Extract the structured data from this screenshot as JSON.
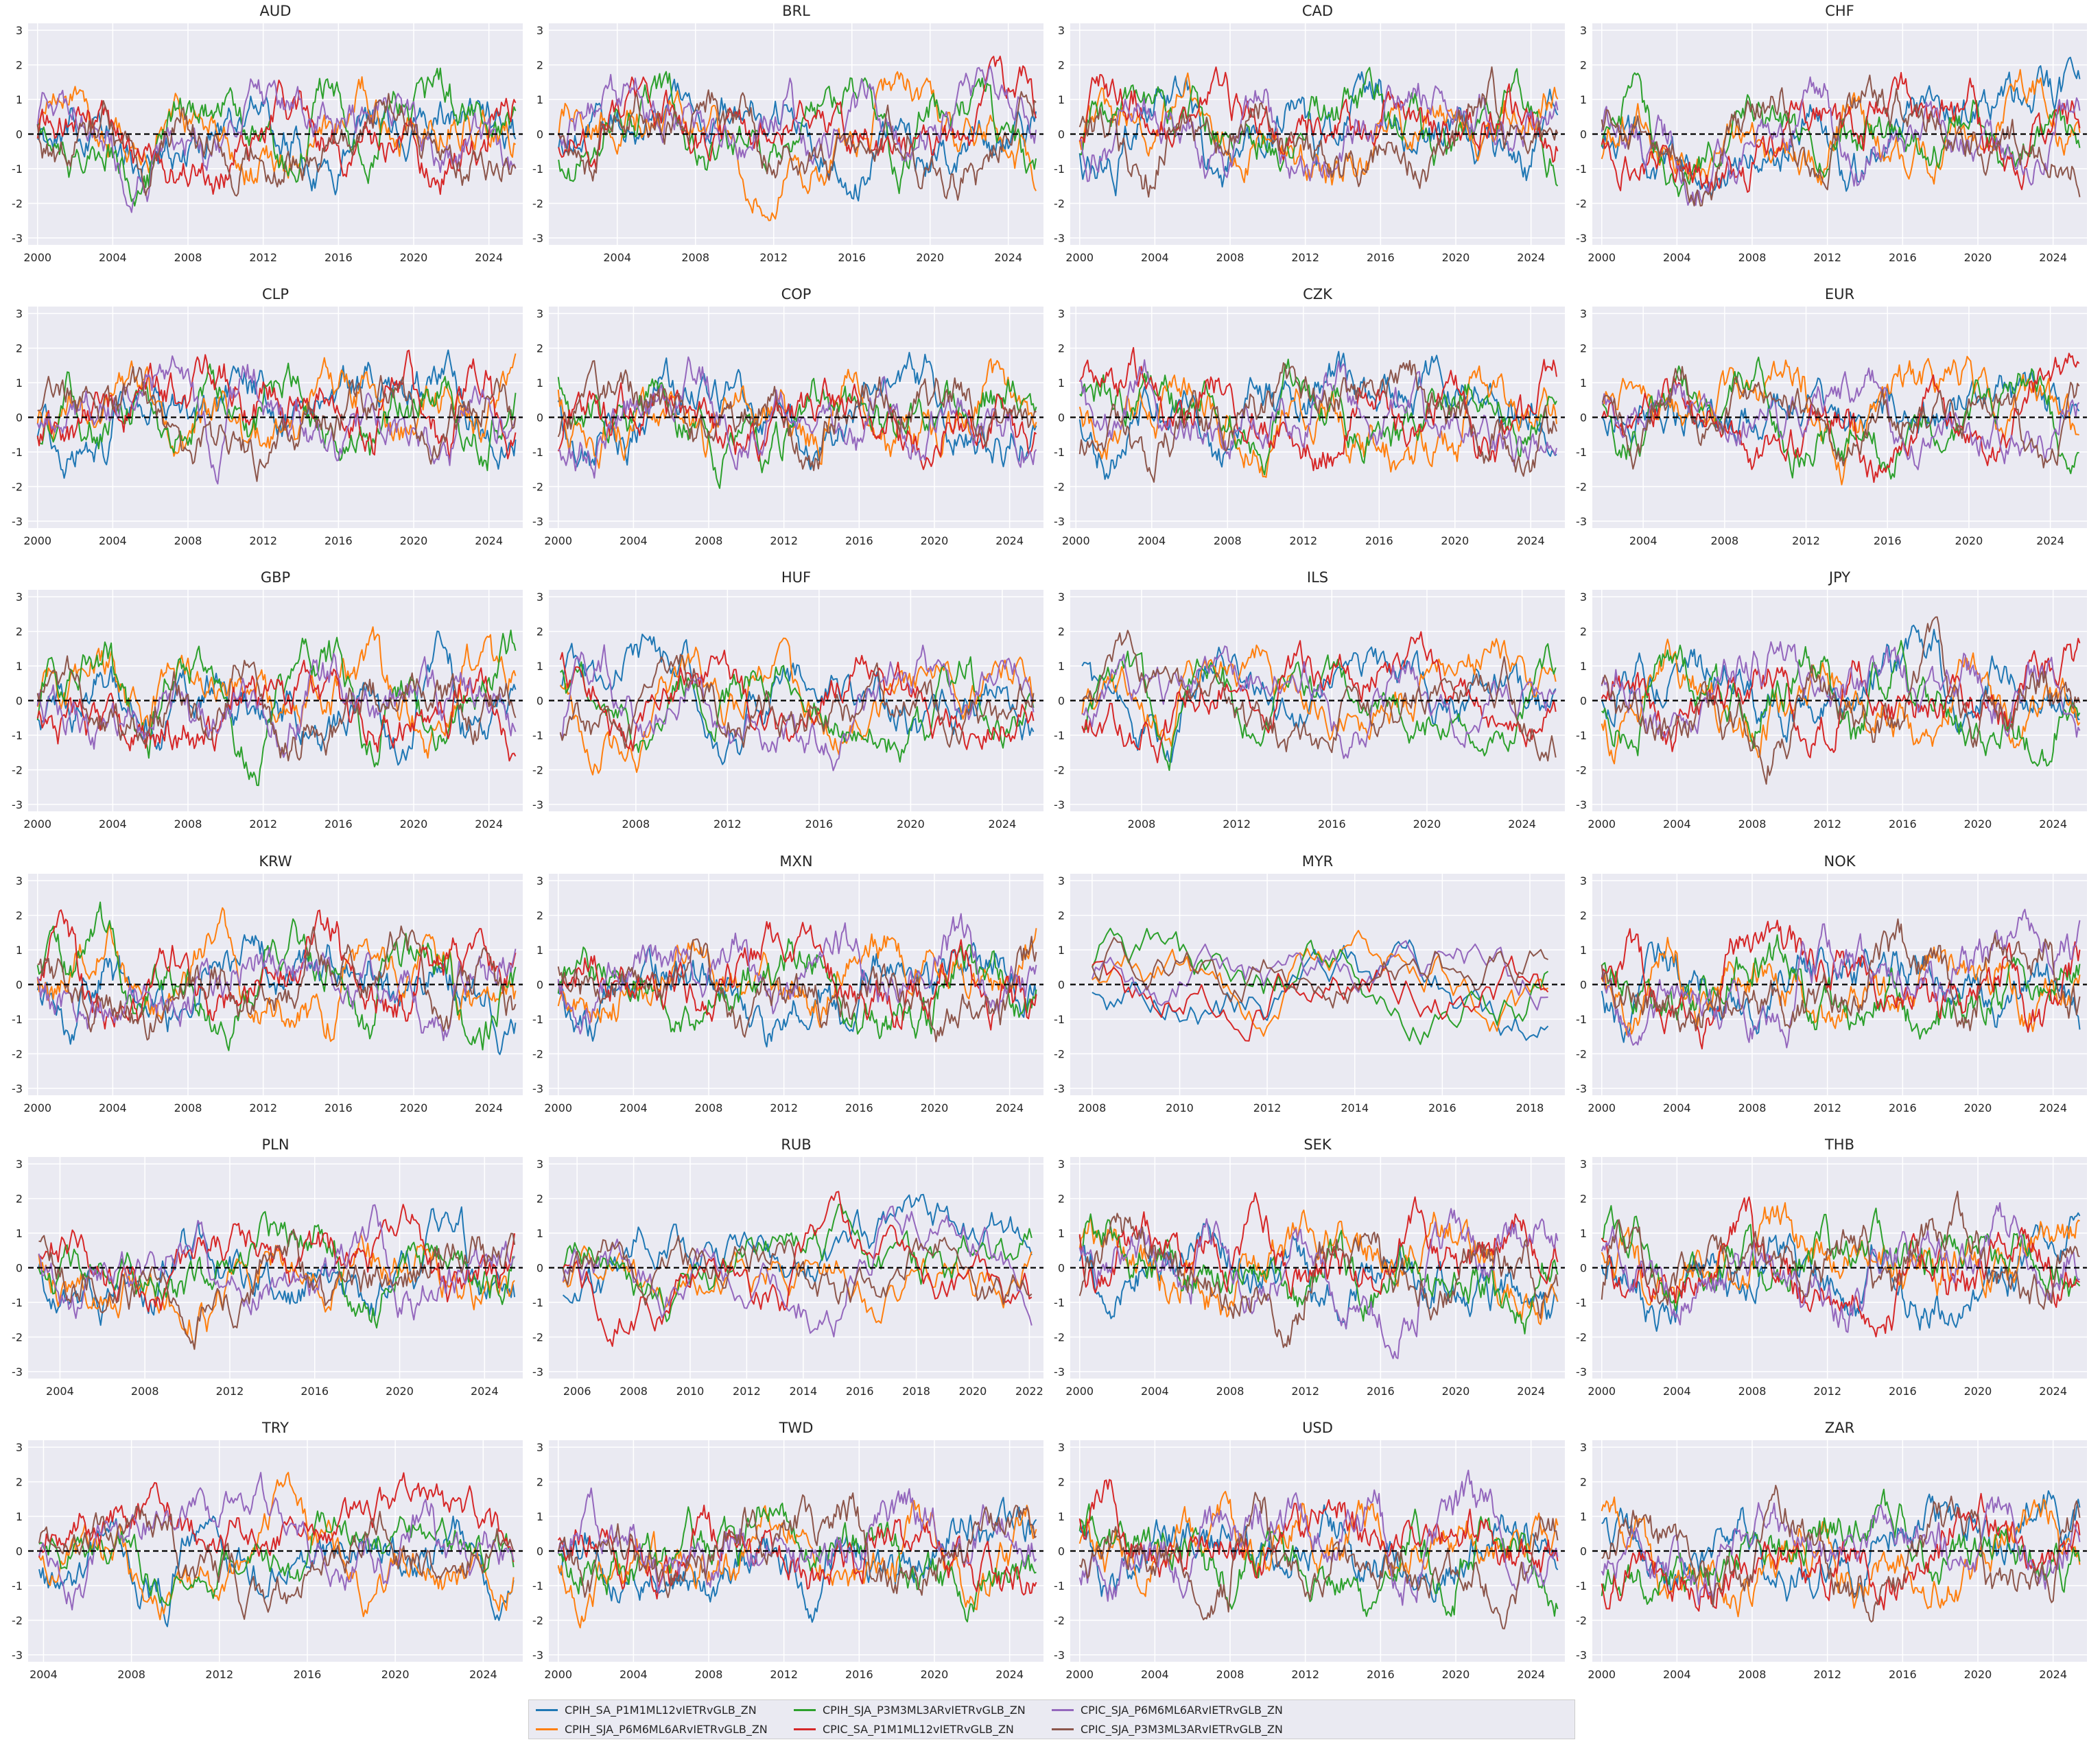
{
  "legend": [
    {
      "label": "CPIH_SA_P1M1ML12vIETRvGLB_ZN",
      "color": "#1f77b4"
    },
    {
      "label": "CPIH_SJA_P6M6ML6ARvIETRvGLB_ZN",
      "color": "#ff7f0e"
    },
    {
      "label": "CPIH_SJA_P3M3ML3ARvIETRvGLB_ZN",
      "color": "#2ca02c"
    },
    {
      "label": "CPIC_SA_P1M1ML12vIETRvGLB_ZN",
      "color": "#d62728"
    },
    {
      "label": "CPIC_SJA_P6M6ML6ARvIETRvGLB_ZN",
      "color": "#9467bd"
    },
    {
      "label": "CPIC_SJA_P3M3ML3ARvIETRvGLB_ZN",
      "color": "#8c564b"
    }
  ],
  "style": {
    "plot_bg": "#eaeaf2",
    "grid": "#ffffff",
    "zero_line": "#000000",
    "text": "#262626"
  },
  "chart_data": [
    {
      "type": "line",
      "title": "AUD",
      "xlim": [
        1999.5,
        2025.8
      ],
      "ylim": [
        -3.2,
        3.2
      ],
      "xticks": [
        "2000",
        "2004",
        "2008",
        "2012",
        "2016",
        "2020",
        "2024"
      ],
      "yticks": [
        "3",
        "2",
        "1",
        "0",
        "-1",
        "-2",
        "-3"
      ],
      "zero_line": 0,
      "grid": true
    },
    {
      "type": "line",
      "title": "BRL",
      "xlim": [
        2000.5,
        2025.8
      ],
      "ylim": [
        -3.2,
        3.2
      ],
      "xticks": [
        "2004",
        "2008",
        "2012",
        "2016",
        "2020",
        "2024"
      ],
      "yticks": [
        "3",
        "2",
        "1",
        "0",
        "-1",
        "-2",
        "-3"
      ],
      "zero_line": 0,
      "grid": true
    },
    {
      "type": "line",
      "title": "CAD",
      "xlim": [
        1999.5,
        2025.8
      ],
      "ylim": [
        -3.2,
        3.2
      ],
      "xticks": [
        "2000",
        "2004",
        "2008",
        "2012",
        "2016",
        "2020",
        "2024"
      ],
      "yticks": [
        "3",
        "2",
        "1",
        "0",
        "-1",
        "-2",
        "-3"
      ],
      "zero_line": 0,
      "grid": true
    },
    {
      "type": "line",
      "title": "CHF",
      "xlim": [
        1999.5,
        2025.8
      ],
      "ylim": [
        -3.2,
        3.2
      ],
      "xticks": [
        "2000",
        "2004",
        "2008",
        "2012",
        "2016",
        "2020",
        "2024"
      ],
      "yticks": [
        "3",
        "2",
        "1",
        "0",
        "-1",
        "-2",
        "-3"
      ],
      "zero_line": 0,
      "grid": true
    },
    {
      "type": "line",
      "title": "CLP",
      "xlim": [
        1999.5,
        2025.8
      ],
      "ylim": [
        -3.2,
        3.2
      ],
      "xticks": [
        "2000",
        "2004",
        "2008",
        "2012",
        "2016",
        "2020",
        "2024"
      ],
      "yticks": [
        "3",
        "2",
        "1",
        "0",
        "-1",
        "-2",
        "-3"
      ],
      "zero_line": 0,
      "grid": true
    },
    {
      "type": "line",
      "title": "COP",
      "xlim": [
        1999.5,
        2025.8
      ],
      "ylim": [
        -3.2,
        3.2
      ],
      "xticks": [
        "2000",
        "2004",
        "2008",
        "2012",
        "2016",
        "2020",
        "2024"
      ],
      "yticks": [
        "3",
        "2",
        "1",
        "0",
        "-1",
        "-2",
        "-3"
      ],
      "zero_line": 0,
      "grid": true
    },
    {
      "type": "line",
      "title": "CZK",
      "xlim": [
        1999.7,
        2025.8
      ],
      "ylim": [
        -3.2,
        3.2
      ],
      "xticks": [
        "2000",
        "2004",
        "2008",
        "2012",
        "2016",
        "2020",
        "2024"
      ],
      "yticks": [
        "3",
        "2",
        "1",
        "0",
        "-1",
        "-2",
        "-3"
      ],
      "zero_line": 0,
      "grid": true
    },
    {
      "type": "line",
      "title": "EUR",
      "xlim": [
        2001.5,
        2025.8
      ],
      "ylim": [
        -3.2,
        3.2
      ],
      "xticks": [
        "2004",
        "2008",
        "2012",
        "2016",
        "2020",
        "2024"
      ],
      "yticks": [
        "3",
        "2",
        "1",
        "0",
        "-1",
        "-2",
        "-3"
      ],
      "zero_line": 0,
      "grid": true
    },
    {
      "type": "line",
      "title": "GBP",
      "xlim": [
        1999.5,
        2025.8
      ],
      "ylim": [
        -3.2,
        3.2
      ],
      "xticks": [
        "2000",
        "2004",
        "2008",
        "2012",
        "2016",
        "2020",
        "2024"
      ],
      "yticks": [
        "3",
        "2",
        "1",
        "0",
        "-1",
        "-2",
        "-3"
      ],
      "zero_line": 0,
      "grid": true
    },
    {
      "type": "line",
      "title": "HUF",
      "xlim": [
        2004.2,
        2025.8
      ],
      "ylim": [
        -3.2,
        3.2
      ],
      "xticks": [
        "2008",
        "2012",
        "2016",
        "2020",
        "2024"
      ],
      "yticks": [
        "3",
        "2",
        "1",
        "0",
        "-1",
        "-2",
        "-3"
      ],
      "zero_line": 0,
      "grid": true
    },
    {
      "type": "line",
      "title": "ILS",
      "xlim": [
        2005.0,
        2025.8
      ],
      "ylim": [
        -3.2,
        3.2
      ],
      "xticks": [
        "2008",
        "2012",
        "2016",
        "2020",
        "2024"
      ],
      "yticks": [
        "3",
        "2",
        "1",
        "0",
        "-1",
        "-2",
        "-3"
      ],
      "zero_line": 0,
      "grid": true
    },
    {
      "type": "line",
      "title": "JPY",
      "xlim": [
        1999.5,
        2025.8
      ],
      "ylim": [
        -3.2,
        3.2
      ],
      "xticks": [
        "2000",
        "2004",
        "2008",
        "2012",
        "2016",
        "2020",
        "2024"
      ],
      "yticks": [
        "3",
        "2",
        "1",
        "0",
        "-1",
        "-2",
        "-3"
      ],
      "zero_line": 0,
      "grid": true
    },
    {
      "type": "line",
      "title": "KRW",
      "xlim": [
        1999.5,
        2025.8
      ],
      "ylim": [
        -3.2,
        3.2
      ],
      "xticks": [
        "2000",
        "2004",
        "2008",
        "2012",
        "2016",
        "2020",
        "2024"
      ],
      "yticks": [
        "3",
        "2",
        "1",
        "0",
        "-1",
        "-2",
        "-3"
      ],
      "zero_line": 0,
      "grid": true
    },
    {
      "type": "line",
      "title": "MXN",
      "xlim": [
        1999.5,
        2025.8
      ],
      "ylim": [
        -3.2,
        3.2
      ],
      "xticks": [
        "2000",
        "2004",
        "2008",
        "2012",
        "2016",
        "2020",
        "2024"
      ],
      "yticks": [
        "3",
        "2",
        "1",
        "0",
        "-1",
        "-2",
        "-3"
      ],
      "zero_line": 0,
      "grid": true
    },
    {
      "type": "line",
      "title": "MYR",
      "xlim": [
        2007.5,
        2018.8
      ],
      "ylim": [
        -3.2,
        3.2
      ],
      "xticks": [
        "2008",
        "2010",
        "2012",
        "2014",
        "2016",
        "2018"
      ],
      "yticks": [
        "3",
        "2",
        "1",
        "0",
        "-1",
        "-2",
        "-3"
      ],
      "zero_line": 0,
      "grid": true
    },
    {
      "type": "line",
      "title": "NOK",
      "xlim": [
        1999.5,
        2025.8
      ],
      "ylim": [
        -3.2,
        3.2
      ],
      "xticks": [
        "2000",
        "2004",
        "2008",
        "2012",
        "2016",
        "2020",
        "2024"
      ],
      "yticks": [
        "3",
        "2",
        "1",
        "0",
        "-1",
        "-2",
        "-3"
      ],
      "zero_line": 0,
      "grid": true
    },
    {
      "type": "line",
      "title": "PLN",
      "xlim": [
        2002.5,
        2025.8
      ],
      "ylim": [
        -3.2,
        3.2
      ],
      "xticks": [
        "2004",
        "2008",
        "2012",
        "2016",
        "2020",
        "2024"
      ],
      "yticks": [
        "3",
        "2",
        "1",
        "0",
        "-1",
        "-2",
        "-3"
      ],
      "zero_line": 0,
      "grid": true
    },
    {
      "type": "line",
      "title": "RUB",
      "xlim": [
        2005.0,
        2022.5
      ],
      "ylim": [
        -3.2,
        3.2
      ],
      "xticks": [
        "2006",
        "2008",
        "2010",
        "2012",
        "2014",
        "2016",
        "2018",
        "2020",
        "2022"
      ],
      "yticks": [
        "3",
        "2",
        "1",
        "0",
        "-1",
        "-2",
        "-3"
      ],
      "zero_line": 0,
      "grid": true
    },
    {
      "type": "line",
      "title": "SEK",
      "xlim": [
        1999.5,
        2025.8
      ],
      "ylim": [
        -3.2,
        3.2
      ],
      "xticks": [
        "2000",
        "2004",
        "2008",
        "2012",
        "2016",
        "2020",
        "2024"
      ],
      "yticks": [
        "3",
        "2",
        "1",
        "0",
        "-1",
        "-2",
        "-3"
      ],
      "zero_line": 0,
      "grid": true
    },
    {
      "type": "line",
      "title": "THB",
      "xlim": [
        1999.5,
        2025.8
      ],
      "ylim": [
        -3.2,
        3.2
      ],
      "xticks": [
        "2000",
        "2004",
        "2008",
        "2012",
        "2016",
        "2020",
        "2024"
      ],
      "yticks": [
        "3",
        "2",
        "1",
        "0",
        "-1",
        "-2",
        "-3"
      ],
      "zero_line": 0,
      "grid": true
    },
    {
      "type": "line",
      "title": "TRY",
      "xlim": [
        2003.3,
        2025.8
      ],
      "ylim": [
        -3.2,
        3.2
      ],
      "xticks": [
        "2004",
        "2008",
        "2012",
        "2016",
        "2020",
        "2024"
      ],
      "yticks": [
        "3",
        "2",
        "1",
        "0",
        "-1",
        "-2",
        "-3"
      ],
      "zero_line": 0,
      "grid": true
    },
    {
      "type": "line",
      "title": "TWD",
      "xlim": [
        1999.5,
        2025.8
      ],
      "ylim": [
        -3.2,
        3.2
      ],
      "xticks": [
        "2000",
        "2004",
        "2008",
        "2012",
        "2016",
        "2020",
        "2024"
      ],
      "yticks": [
        "3",
        "2",
        "1",
        "0",
        "-1",
        "-2",
        "-3"
      ],
      "zero_line": 0,
      "grid": true
    },
    {
      "type": "line",
      "title": "USD",
      "xlim": [
        1999.5,
        2025.8
      ],
      "ylim": [
        -3.2,
        3.2
      ],
      "xticks": [
        "2000",
        "2004",
        "2008",
        "2012",
        "2016",
        "2020",
        "2024"
      ],
      "yticks": [
        "3",
        "2",
        "1",
        "0",
        "-1",
        "-2",
        "-3"
      ],
      "zero_line": 0,
      "grid": true
    },
    {
      "type": "line",
      "title": "ZAR",
      "xlim": [
        1999.5,
        2025.8
      ],
      "ylim": [
        -3.2,
        3.2
      ],
      "xticks": [
        "2000",
        "2004",
        "2008",
        "2012",
        "2016",
        "2020",
        "2024"
      ],
      "yticks": [
        "3",
        "2",
        "1",
        "0",
        "-1",
        "-2",
        "-3"
      ],
      "zero_line": 0,
      "grid": true
    }
  ]
}
